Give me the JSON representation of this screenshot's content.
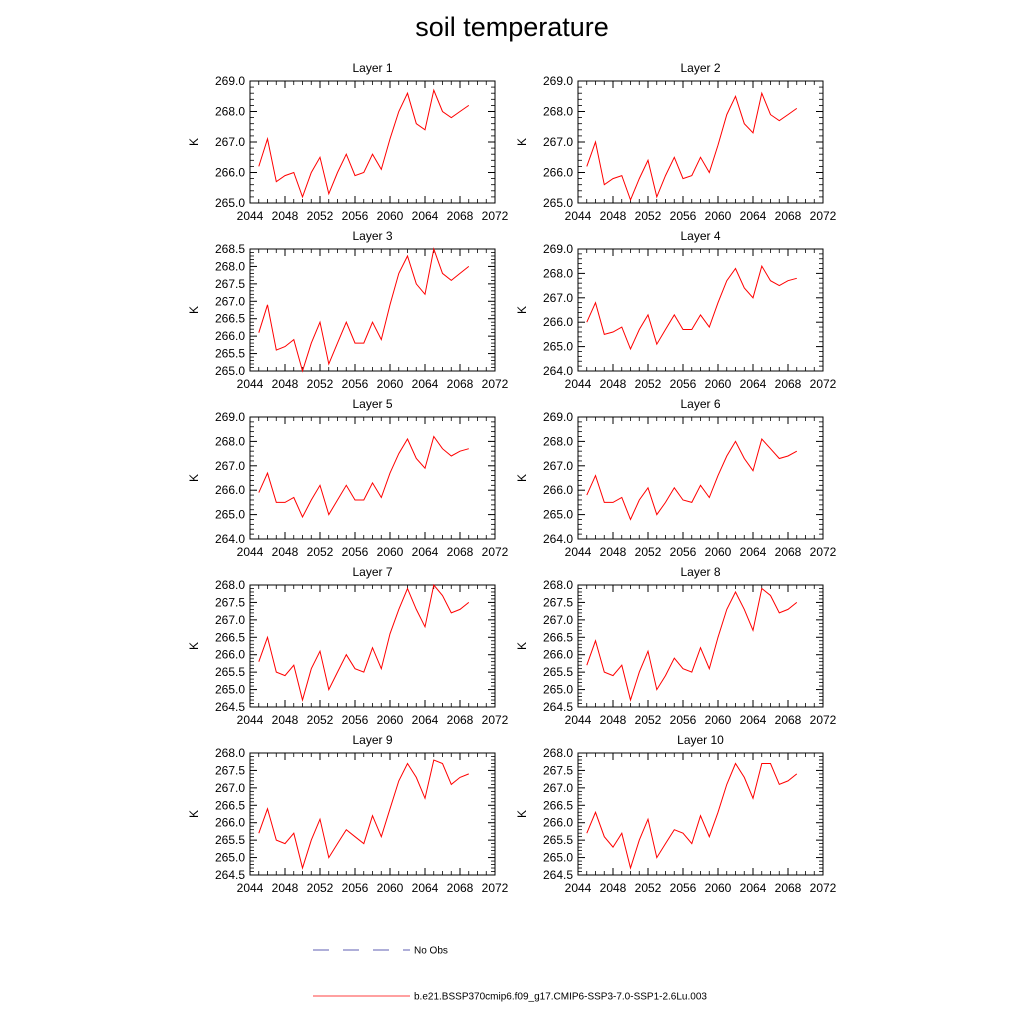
{
  "figure_title": "soil temperature",
  "legend": [
    {
      "label": "No Obs",
      "color": "#2b2b9a",
      "style": "dashed"
    },
    {
      "label": "b.e21.BSSP370cmip6.f09_g17.CMIP6-SSP3-7.0-SSP1-2.6Lu.003",
      "color": "#ff0000",
      "style": "solid"
    }
  ],
  "chart_data": [
    {
      "type": "line",
      "title": "Layer 1",
      "ylabel": "K",
      "xlim": [
        2044,
        2072
      ],
      "ylim": [
        265.0,
        269.0
      ],
      "xticks": [
        "2044",
        "2048",
        "2052",
        "2056",
        "2060",
        "2064",
        "2068",
        "2072"
      ],
      "yticks": [
        "265.0",
        "266.0",
        "267.0",
        "268.0",
        "269.0"
      ],
      "ytick_values": [
        265,
        266,
        267,
        268,
        269
      ],
      "x": [
        2045,
        2046,
        2047,
        2048,
        2049,
        2050,
        2051,
        2052,
        2053,
        2054,
        2055,
        2056,
        2057,
        2058,
        2059,
        2060,
        2061,
        2062,
        2063,
        2064,
        2065,
        2066,
        2067,
        2068,
        2069
      ],
      "series": [
        {
          "values": [
            266.2,
            267.1,
            265.7,
            265.9,
            266.0,
            265.2,
            266.0,
            266.5,
            265.3,
            266.0,
            266.6,
            265.9,
            266.0,
            266.6,
            266.1,
            267.1,
            268.0,
            268.6,
            267.6,
            267.4,
            268.7,
            268.0,
            267.8,
            268.0,
            268.2
          ]
        }
      ]
    },
    {
      "type": "line",
      "title": "Layer 2",
      "ylabel": "K",
      "xlim": [
        2044,
        2072
      ],
      "ylim": [
        265.0,
        269.0
      ],
      "xticks": [
        "2044",
        "2048",
        "2052",
        "2056",
        "2060",
        "2064",
        "2068",
        "2072"
      ],
      "yticks": [
        "265.0",
        "266.0",
        "267.0",
        "268.0",
        "269.0"
      ],
      "ytick_values": [
        265,
        266,
        267,
        268,
        269
      ],
      "x": [
        2045,
        2046,
        2047,
        2048,
        2049,
        2050,
        2051,
        2052,
        2053,
        2054,
        2055,
        2056,
        2057,
        2058,
        2059,
        2060,
        2061,
        2062,
        2063,
        2064,
        2065,
        2066,
        2067,
        2068,
        2069
      ],
      "series": [
        {
          "values": [
            266.2,
            267.0,
            265.6,
            265.8,
            265.9,
            265.1,
            265.8,
            266.4,
            265.2,
            265.9,
            266.5,
            265.8,
            265.9,
            266.5,
            266.0,
            266.9,
            267.9,
            268.5,
            267.6,
            267.3,
            268.6,
            267.9,
            267.7,
            267.9,
            268.1
          ]
        }
      ]
    },
    {
      "type": "line",
      "title": "Layer 3",
      "ylabel": "K",
      "xlim": [
        2044,
        2072
      ],
      "ylim": [
        265.0,
        268.5
      ],
      "xticks": [
        "2044",
        "2048",
        "2052",
        "2056",
        "2060",
        "2064",
        "2068",
        "2072"
      ],
      "yticks": [
        "265.0",
        "265.5",
        "266.0",
        "266.5",
        "267.0",
        "267.5",
        "268.0",
        "268.5"
      ],
      "ytick_values": [
        265,
        265.5,
        266,
        266.5,
        267,
        267.5,
        268,
        268.5
      ],
      "x": [
        2045,
        2046,
        2047,
        2048,
        2049,
        2050,
        2051,
        2052,
        2053,
        2054,
        2055,
        2056,
        2057,
        2058,
        2059,
        2060,
        2061,
        2062,
        2063,
        2064,
        2065,
        2066,
        2067,
        2068,
        2069
      ],
      "series": [
        {
          "values": [
            266.1,
            266.9,
            265.6,
            265.7,
            265.9,
            265.0,
            265.8,
            266.4,
            265.2,
            265.8,
            266.4,
            265.8,
            265.8,
            266.4,
            265.9,
            266.9,
            267.8,
            268.3,
            267.5,
            267.2,
            268.5,
            267.8,
            267.6,
            267.8,
            268.0
          ]
        }
      ]
    },
    {
      "type": "line",
      "title": "Layer 4",
      "ylabel": "K",
      "xlim": [
        2044,
        2072
      ],
      "ylim": [
        264.0,
        269.0
      ],
      "xticks": [
        "2044",
        "2048",
        "2052",
        "2056",
        "2060",
        "2064",
        "2068",
        "2072"
      ],
      "yticks": [
        "264.0",
        "265.0",
        "266.0",
        "267.0",
        "268.0",
        "269.0"
      ],
      "ytick_values": [
        264,
        265,
        266,
        267,
        268,
        269
      ],
      "x": [
        2045,
        2046,
        2047,
        2048,
        2049,
        2050,
        2051,
        2052,
        2053,
        2054,
        2055,
        2056,
        2057,
        2058,
        2059,
        2060,
        2061,
        2062,
        2063,
        2064,
        2065,
        2066,
        2067,
        2068,
        2069
      ],
      "series": [
        {
          "values": [
            266.0,
            266.8,
            265.5,
            265.6,
            265.8,
            264.9,
            265.7,
            266.3,
            265.1,
            265.7,
            266.3,
            265.7,
            265.7,
            266.3,
            265.8,
            266.8,
            267.7,
            268.2,
            267.4,
            267.0,
            268.3,
            267.7,
            267.5,
            267.7,
            267.8
          ]
        }
      ]
    },
    {
      "type": "line",
      "title": "Layer 5",
      "ylabel": "K",
      "xlim": [
        2044,
        2072
      ],
      "ylim": [
        264.0,
        269.0
      ],
      "xticks": [
        "2044",
        "2048",
        "2052",
        "2056",
        "2060",
        "2064",
        "2068",
        "2072"
      ],
      "yticks": [
        "264.0",
        "265.0",
        "266.0",
        "267.0",
        "268.0",
        "269.0"
      ],
      "ytick_values": [
        264,
        265,
        266,
        267,
        268,
        269
      ],
      "x": [
        2045,
        2046,
        2047,
        2048,
        2049,
        2050,
        2051,
        2052,
        2053,
        2054,
        2055,
        2056,
        2057,
        2058,
        2059,
        2060,
        2061,
        2062,
        2063,
        2064,
        2065,
        2066,
        2067,
        2068,
        2069
      ],
      "series": [
        {
          "values": [
            265.9,
            266.7,
            265.5,
            265.5,
            265.7,
            264.9,
            265.6,
            266.2,
            265.0,
            265.6,
            266.2,
            265.6,
            265.6,
            266.3,
            265.7,
            266.7,
            267.5,
            268.1,
            267.3,
            266.9,
            268.2,
            267.7,
            267.4,
            267.6,
            267.7
          ]
        }
      ]
    },
    {
      "type": "line",
      "title": "Layer 6",
      "ylabel": "K",
      "xlim": [
        2044,
        2072
      ],
      "ylim": [
        264.0,
        269.0
      ],
      "xticks": [
        "2044",
        "2048",
        "2052",
        "2056",
        "2060",
        "2064",
        "2068",
        "2072"
      ],
      "yticks": [
        "264.0",
        "265.0",
        "266.0",
        "267.0",
        "268.0",
        "269.0"
      ],
      "ytick_values": [
        264,
        265,
        266,
        267,
        268,
        269
      ],
      "x": [
        2045,
        2046,
        2047,
        2048,
        2049,
        2050,
        2051,
        2052,
        2053,
        2054,
        2055,
        2056,
        2057,
        2058,
        2059,
        2060,
        2061,
        2062,
        2063,
        2064,
        2065,
        2066,
        2067,
        2068,
        2069
      ],
      "series": [
        {
          "values": [
            265.8,
            266.6,
            265.5,
            265.5,
            265.7,
            264.8,
            265.6,
            266.1,
            265.0,
            265.5,
            266.1,
            265.6,
            265.5,
            266.2,
            265.7,
            266.6,
            267.4,
            268.0,
            267.3,
            266.8,
            268.1,
            267.7,
            267.3,
            267.4,
            267.6
          ]
        }
      ]
    },
    {
      "type": "line",
      "title": "Layer 7",
      "ylabel": "K",
      "xlim": [
        2044,
        2072
      ],
      "ylim": [
        264.5,
        268.0
      ],
      "xticks": [
        "2044",
        "2048",
        "2052",
        "2056",
        "2060",
        "2064",
        "2068",
        "2072"
      ],
      "yticks": [
        "264.5",
        "265.0",
        "265.5",
        "266.0",
        "266.5",
        "267.0",
        "267.5",
        "268.0"
      ],
      "ytick_values": [
        264.5,
        265,
        265.5,
        266,
        266.5,
        267,
        267.5,
        268
      ],
      "x": [
        2045,
        2046,
        2047,
        2048,
        2049,
        2050,
        2051,
        2052,
        2053,
        2054,
        2055,
        2056,
        2057,
        2058,
        2059,
        2060,
        2061,
        2062,
        2063,
        2064,
        2065,
        2066,
        2067,
        2068,
        2069
      ],
      "series": [
        {
          "values": [
            265.8,
            266.5,
            265.5,
            265.4,
            265.7,
            264.7,
            265.6,
            266.1,
            265.0,
            265.5,
            266.0,
            265.6,
            265.5,
            266.2,
            265.6,
            266.6,
            267.3,
            267.9,
            267.3,
            266.8,
            268.0,
            267.7,
            267.2,
            267.3,
            267.5
          ]
        }
      ]
    },
    {
      "type": "line",
      "title": "Layer 8",
      "ylabel": "K",
      "xlim": [
        2044,
        2072
      ],
      "ylim": [
        264.5,
        268.0
      ],
      "xticks": [
        "2044",
        "2048",
        "2052",
        "2056",
        "2060",
        "2064",
        "2068",
        "2072"
      ],
      "yticks": [
        "264.5",
        "265.0",
        "265.5",
        "266.0",
        "266.5",
        "267.0",
        "267.5",
        "268.0"
      ],
      "ytick_values": [
        264.5,
        265,
        265.5,
        266,
        266.5,
        267,
        267.5,
        268
      ],
      "x": [
        2045,
        2046,
        2047,
        2048,
        2049,
        2050,
        2051,
        2052,
        2053,
        2054,
        2055,
        2056,
        2057,
        2058,
        2059,
        2060,
        2061,
        2062,
        2063,
        2064,
        2065,
        2066,
        2067,
        2068,
        2069
      ],
      "series": [
        {
          "values": [
            265.7,
            266.4,
            265.5,
            265.4,
            265.7,
            264.7,
            265.5,
            266.1,
            265.0,
            265.4,
            265.9,
            265.6,
            265.5,
            266.2,
            265.6,
            266.5,
            267.3,
            267.8,
            267.3,
            266.7,
            267.9,
            267.7,
            267.2,
            267.3,
            267.5
          ]
        }
      ]
    },
    {
      "type": "line",
      "title": "Layer 9",
      "ylabel": "K",
      "xlim": [
        2044,
        2072
      ],
      "ylim": [
        264.5,
        268.0
      ],
      "xticks": [
        "2044",
        "2048",
        "2052",
        "2056",
        "2060",
        "2064",
        "2068",
        "2072"
      ],
      "yticks": [
        "264.5",
        "265.0",
        "265.5",
        "266.0",
        "266.5",
        "267.0",
        "267.5",
        "268.0"
      ],
      "ytick_values": [
        264.5,
        265,
        265.5,
        266,
        266.5,
        267,
        267.5,
        268
      ],
      "x": [
        2045,
        2046,
        2047,
        2048,
        2049,
        2050,
        2051,
        2052,
        2053,
        2054,
        2055,
        2056,
        2057,
        2058,
        2059,
        2060,
        2061,
        2062,
        2063,
        2064,
        2065,
        2066,
        2067,
        2068,
        2069
      ],
      "series": [
        {
          "values": [
            265.7,
            266.4,
            265.5,
            265.4,
            265.7,
            264.7,
            265.5,
            266.1,
            265.0,
            265.4,
            265.8,
            265.6,
            265.4,
            266.2,
            265.6,
            266.4,
            267.2,
            267.7,
            267.3,
            266.7,
            267.8,
            267.7,
            267.1,
            267.3,
            267.4
          ]
        }
      ]
    },
    {
      "type": "line",
      "title": "Layer 10",
      "ylabel": "K",
      "xlim": [
        2044,
        2072
      ],
      "ylim": [
        264.5,
        268.0
      ],
      "xticks": [
        "2044",
        "2048",
        "2052",
        "2056",
        "2060",
        "2064",
        "2068",
        "2072"
      ],
      "yticks": [
        "264.5",
        "265.0",
        "265.5",
        "266.0",
        "266.5",
        "267.0",
        "267.5",
        "268.0"
      ],
      "ytick_values": [
        264.5,
        265,
        265.5,
        266,
        266.5,
        267,
        267.5,
        268
      ],
      "x": [
        2045,
        2046,
        2047,
        2048,
        2049,
        2050,
        2051,
        2052,
        2053,
        2054,
        2055,
        2056,
        2057,
        2058,
        2059,
        2060,
        2061,
        2062,
        2063,
        2064,
        2065,
        2066,
        2067,
        2068,
        2069
      ],
      "series": [
        {
          "values": [
            265.7,
            266.3,
            265.6,
            265.3,
            265.7,
            264.7,
            265.5,
            266.1,
            265.0,
            265.4,
            265.8,
            265.7,
            265.4,
            266.2,
            265.6,
            266.3,
            267.1,
            267.7,
            267.3,
            266.7,
            267.7,
            267.7,
            267.1,
            267.2,
            267.4
          ]
        }
      ]
    }
  ]
}
